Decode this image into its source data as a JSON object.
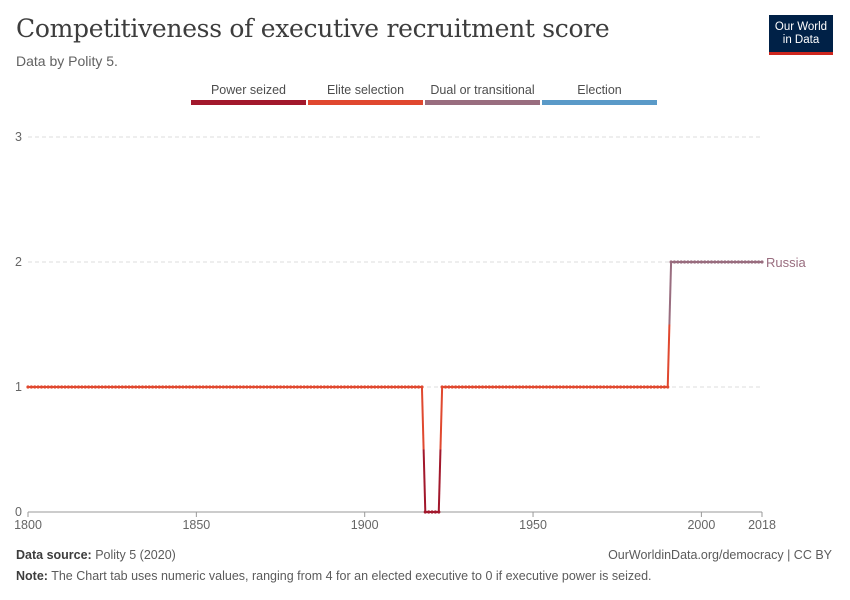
{
  "header": {
    "title": "Competitiveness of executive recruitment score",
    "subtitle": "Data by Polity 5."
  },
  "logo": {
    "line1": "Our World",
    "line2": "in Data"
  },
  "legend": [
    {
      "label": "Power seized",
      "color": "#a2182c"
    },
    {
      "label": "Elite selection",
      "color": "#e0482f"
    },
    {
      "label": "Dual or transitional",
      "color": "#996d7f"
    },
    {
      "label": "Election",
      "color": "#5a9ac8"
    }
  ],
  "footer": {
    "source_label": "Data source:",
    "source_value": "Polity 5 (2020)",
    "credit": "OurWorldinData.org/democracy | CC BY",
    "note_label": "Note:",
    "note_value": "The Chart tab uses numeric values, ranging from 4 for an elected executive to 0 if executive power is seized."
  },
  "chart_data": {
    "type": "line",
    "xlim": [
      1800,
      2018
    ],
    "ylim": [
      0,
      3
    ],
    "x_ticks": [
      1800,
      1850,
      1900,
      1950,
      2000,
      2018
    ],
    "y_ticks": [
      0,
      1,
      2,
      3
    ],
    "grid": "horizontal dashed",
    "series": [
      {
        "name": "Russia",
        "color_elite": "#e0482f",
        "color_dual": "#996d7f",
        "color_seized": "#a2182c",
        "segments": [
          {
            "x_start": 1800,
            "x_end": 1917,
            "value": 1
          },
          {
            "x_start": 1918,
            "x_end": 1922,
            "value": 0
          },
          {
            "x_start": 1923,
            "x_end": 1990,
            "value": 1
          },
          {
            "x_start": 1991,
            "x_end": 2018,
            "value": 2
          }
        ]
      }
    ]
  }
}
